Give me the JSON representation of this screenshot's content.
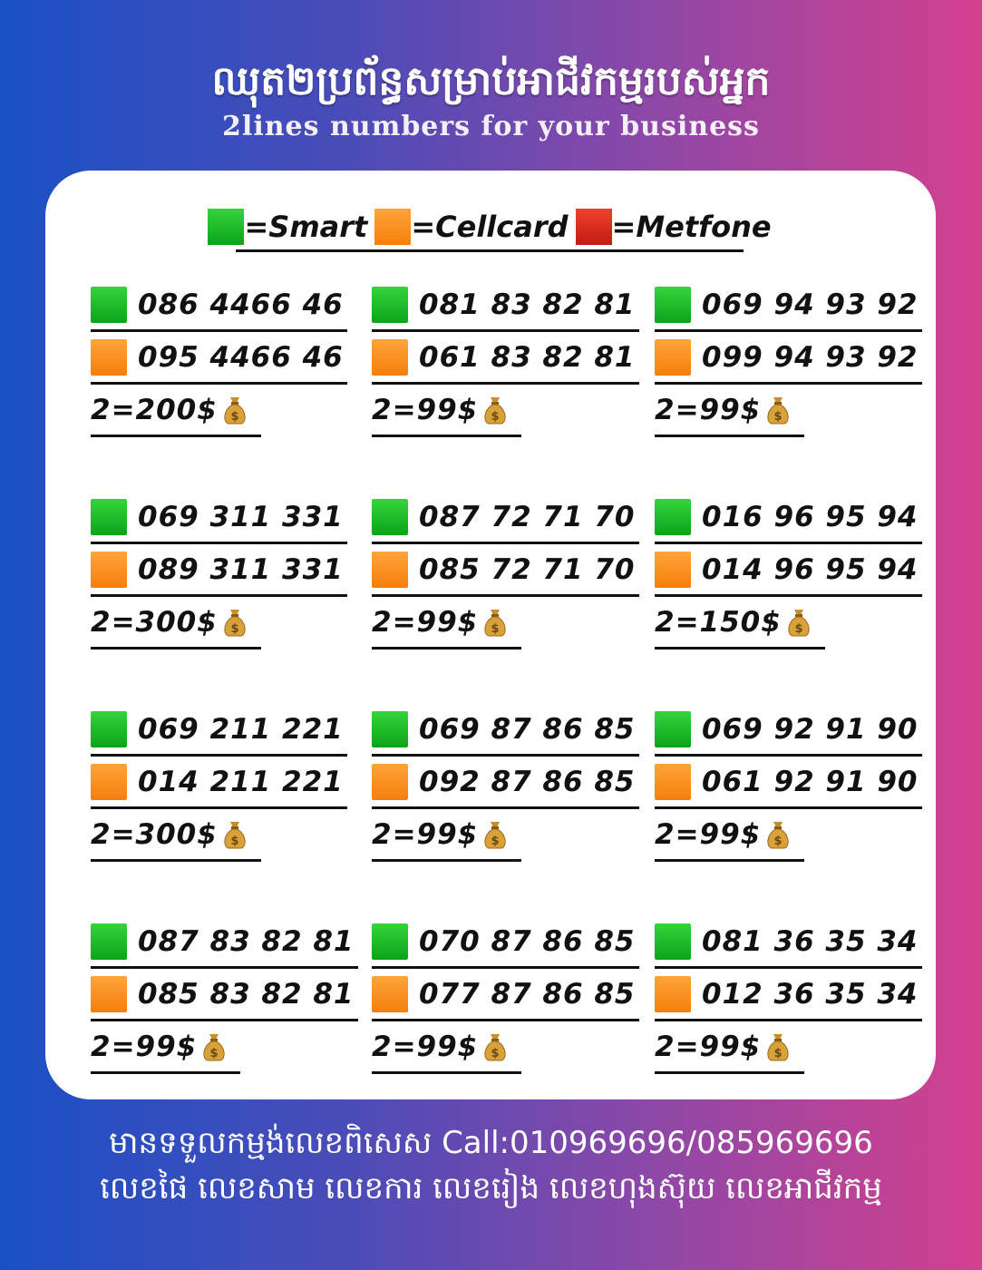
{
  "header": {
    "title_km": "ឈុត២ប្រព័ន្ធសម្រាប់អាជីវកម្មរបស់អ្នក",
    "title_en": "2lines numbers for your business"
  },
  "legend": [
    {
      "label": "=Smart",
      "color": "#14b024"
    },
    {
      "label": "=Cellcard",
      "color": "#f78d1c"
    },
    {
      "label": "=Metfone",
      "color": "#d4261a"
    }
  ],
  "groups": [
    {
      "smart": "086 4466 46",
      "cellcard": "095 4466 46",
      "price": "2=200$"
    },
    {
      "smart": "081 83 82 81",
      "cellcard": "061 83 82 81",
      "price": "2=99$"
    },
    {
      "smart": "069 94 93 92",
      "cellcard": "099 94 93 92",
      "price": "2=99$"
    },
    {
      "smart": "069 311 331",
      "cellcard": "089 311 331",
      "price": "2=300$"
    },
    {
      "smart": "087 72 71 70",
      "cellcard": "085 72 71 70",
      "price": "2=99$"
    },
    {
      "smart": "016 96 95 94",
      "cellcard": "014 96 95 94",
      "price": "2=150$"
    },
    {
      "smart": "069 211 221",
      "cellcard": "014 211 221",
      "price": "2=300$"
    },
    {
      "smart": "069 87 86 85",
      "cellcard": "092 87 86 85",
      "price": "2=99$"
    },
    {
      "smart": "069 92 91 90",
      "cellcard": "061 92 91 90",
      "price": "2=99$"
    },
    {
      "smart": "087 83 82 81",
      "cellcard": "085 83 82 81",
      "price": "2=99$"
    },
    {
      "smart": "070 87 86 85",
      "cellcard": "077 87 86 85",
      "price": "2=99$"
    },
    {
      "smart": "081 36 35 34",
      "cellcard": "012 36 35 34",
      "price": "2=99$"
    }
  ],
  "price_icon": "money-bag-icon",
  "footer": {
    "line1": "មានទទួលកម្មង់លេខពិសេស Call:010969696/085969696",
    "line2": "លេខផៃ លេខសាម លេខការ លេខរៀង លេខហុងស៊ុយ លេខអាជីវកម្ម"
  }
}
